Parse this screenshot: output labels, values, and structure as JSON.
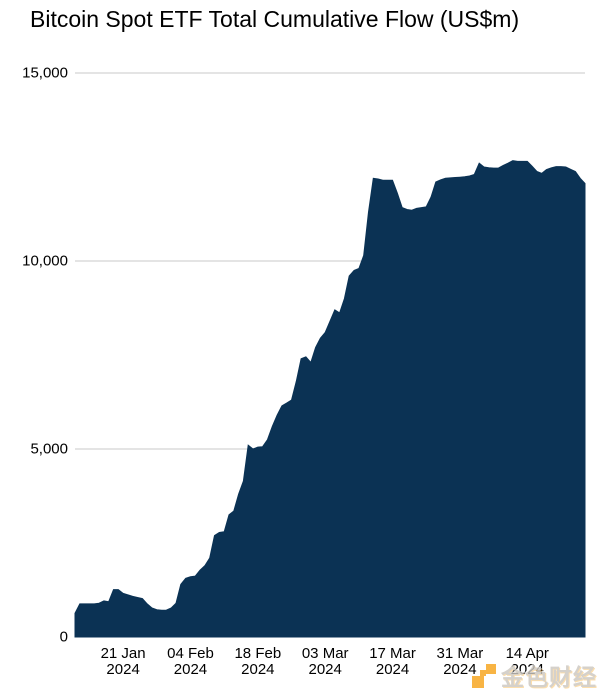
{
  "title": "Bitcoin Spot ETF Total Cumulative Flow (US$m)",
  "watermark": {
    "text": "金色财经",
    "logo_color": "#f7a41c",
    "text_color": "#ccc7c0"
  },
  "chart_data": {
    "type": "area",
    "title": "Bitcoin Spot ETF Total Cumulative Flow (US$m)",
    "xlabel": "",
    "ylabel": "",
    "ylim": [
      0,
      15000
    ],
    "grid": "horizontal",
    "legend": "none",
    "area_color": "#0b3254",
    "gridline_color": "#c9c9c9",
    "y_ticks": [
      "15,000",
      "10,000",
      "5,000",
      "0"
    ],
    "y_tick_values": [
      15000,
      10000,
      5000,
      0
    ],
    "x_ticks": [
      {
        "line1": "21 Jan",
        "line2": "2024",
        "day_index": 10
      },
      {
        "line1": "04 Feb",
        "line2": "2024",
        "day_index": 24
      },
      {
        "line1": "18 Feb",
        "line2": "2024",
        "day_index": 38
      },
      {
        "line1": "03 Mar",
        "line2": "2024",
        "day_index": 52
      },
      {
        "line1": "17 Mar",
        "line2": "2024",
        "day_index": 66
      },
      {
        "line1": "31 Mar",
        "line2": "2024",
        "day_index": 80
      },
      {
        "line1": "14 Apr",
        "line2": "2024",
        "day_index": 94
      }
    ],
    "series": [
      {
        "name": "Total cumulative flow (US$m)",
        "points": [
          [
            "2024-01-11",
            630
          ],
          [
            "2024-01-12",
            880
          ],
          [
            "2024-01-13",
            880
          ],
          [
            "2024-01-14",
            880
          ],
          [
            "2024-01-15",
            880
          ],
          [
            "2024-01-16",
            900
          ],
          [
            "2024-01-17",
            960
          ],
          [
            "2024-01-18",
            940
          ],
          [
            "2024-01-19",
            1260
          ],
          [
            "2024-01-20",
            1260
          ],
          [
            "2024-01-21",
            1160
          ],
          [
            "2024-01-22",
            1120
          ],
          [
            "2024-01-23",
            1080
          ],
          [
            "2024-01-24",
            1050
          ],
          [
            "2024-01-25",
            1020
          ],
          [
            "2024-01-26",
            880
          ],
          [
            "2024-01-27",
            770
          ],
          [
            "2024-01-28",
            725
          ],
          [
            "2024-01-29",
            712
          ],
          [
            "2024-01-30",
            715
          ],
          [
            "2024-01-31",
            770
          ],
          [
            "2024-02-01",
            900
          ],
          [
            "2024-02-02",
            1400
          ],
          [
            "2024-02-03",
            1560
          ],
          [
            "2024-02-04",
            1600
          ],
          [
            "2024-02-05",
            1620
          ],
          [
            "2024-02-06",
            1780
          ],
          [
            "2024-02-07",
            1900
          ],
          [
            "2024-02-08",
            2100
          ],
          [
            "2024-02-09",
            2700
          ],
          [
            "2024-02-10",
            2780
          ],
          [
            "2024-02-11",
            2800
          ],
          [
            "2024-02-12",
            3250
          ],
          [
            "2024-02-13",
            3350
          ],
          [
            "2024-02-14",
            3800
          ],
          [
            "2024-02-15",
            4150
          ],
          [
            "2024-02-16",
            5100
          ],
          [
            "2024-02-17",
            5000
          ],
          [
            "2024-02-18",
            5050
          ],
          [
            "2024-02-19",
            5060
          ],
          [
            "2024-02-20",
            5250
          ],
          [
            "2024-02-21",
            5600
          ],
          [
            "2024-02-22",
            5900
          ],
          [
            "2024-02-23",
            6150
          ],
          [
            "2024-02-24",
            6220
          ],
          [
            "2024-02-25",
            6300
          ],
          [
            "2024-02-26",
            6800
          ],
          [
            "2024-02-27",
            7400
          ],
          [
            "2024-02-28",
            7450
          ],
          [
            "2024-02-29",
            7300
          ],
          [
            "2024-03-01",
            7700
          ],
          [
            "2024-03-02",
            7950
          ],
          [
            "2024-03-03",
            8100
          ],
          [
            "2024-03-04",
            8400
          ],
          [
            "2024-03-05",
            8700
          ],
          [
            "2024-03-06",
            8620
          ],
          [
            "2024-03-07",
            9000
          ],
          [
            "2024-03-08",
            9600
          ],
          [
            "2024-03-09",
            9750
          ],
          [
            "2024-03-10",
            9800
          ],
          [
            "2024-03-11",
            10150
          ],
          [
            "2024-03-12",
            11300
          ],
          [
            "2024-03-13",
            12200
          ],
          [
            "2024-03-14",
            12180
          ],
          [
            "2024-03-15",
            12150
          ],
          [
            "2024-03-16",
            12150
          ],
          [
            "2024-03-17",
            12150
          ],
          [
            "2024-03-18",
            11800
          ],
          [
            "2024-03-19",
            11420
          ],
          [
            "2024-03-20",
            11370
          ],
          [
            "2024-03-21",
            11350
          ],
          [
            "2024-03-22",
            11400
          ],
          [
            "2024-03-23",
            11420
          ],
          [
            "2024-03-24",
            11440
          ],
          [
            "2024-03-25",
            11700
          ],
          [
            "2024-03-26",
            12100
          ],
          [
            "2024-03-27",
            12160
          ],
          [
            "2024-03-28",
            12200
          ],
          [
            "2024-03-29",
            12210
          ],
          [
            "2024-03-30",
            12220
          ],
          [
            "2024-03-31",
            12230
          ],
          [
            "2024-04-01",
            12240
          ],
          [
            "2024-04-02",
            12260
          ],
          [
            "2024-04-03",
            12300
          ],
          [
            "2024-04-04",
            12600
          ],
          [
            "2024-04-05",
            12500
          ],
          [
            "2024-04-06",
            12480
          ],
          [
            "2024-04-07",
            12470
          ],
          [
            "2024-04-08",
            12470
          ],
          [
            "2024-04-09",
            12540
          ],
          [
            "2024-04-10",
            12600
          ],
          [
            "2024-04-11",
            12670
          ],
          [
            "2024-04-12",
            12650
          ],
          [
            "2024-04-13",
            12650
          ],
          [
            "2024-04-14",
            12650
          ],
          [
            "2024-04-15",
            12520
          ],
          [
            "2024-04-16",
            12380
          ],
          [
            "2024-04-17",
            12330
          ],
          [
            "2024-04-18",
            12430
          ],
          [
            "2024-04-19",
            12480
          ],
          [
            "2024-04-20",
            12510
          ],
          [
            "2024-04-21",
            12510
          ],
          [
            "2024-04-22",
            12500
          ],
          [
            "2024-04-23",
            12440
          ],
          [
            "2024-04-24",
            12380
          ],
          [
            "2024-04-25",
            12200
          ],
          [
            "2024-04-26",
            12060
          ]
        ]
      }
    ]
  }
}
